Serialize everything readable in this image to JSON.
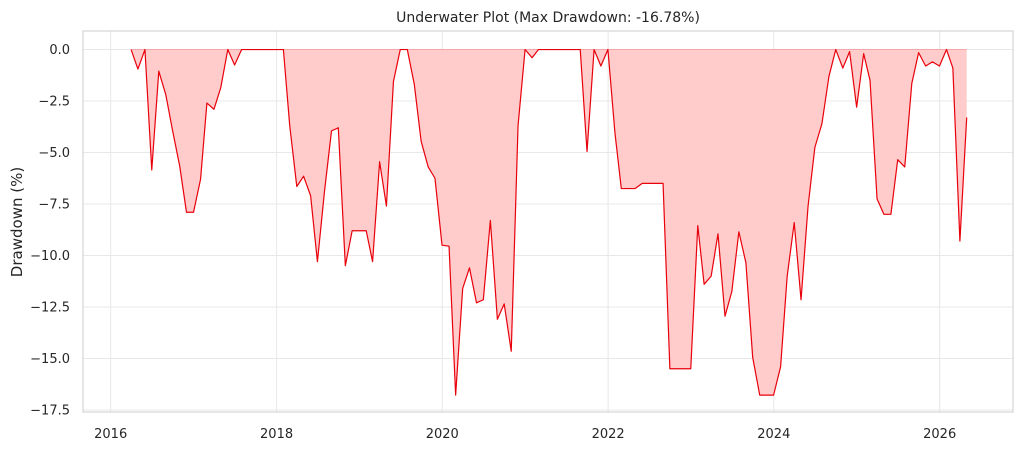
{
  "chart_data": {
    "type": "area",
    "title": "Underwater Plot (Max Drawdown: -16.78%)",
    "xlabel": "",
    "ylabel": "Drawdown (%)",
    "xlim": [
      "2015-09-01",
      "2026-11-20"
    ],
    "ylim": [
      -17.6,
      0.9
    ],
    "x_ticks": [
      "2016",
      "2018",
      "2020",
      "2022",
      "2024",
      "2026"
    ],
    "x_tick_dates": [
      "2016-01-01",
      "2018-01-01",
      "2020-01-01",
      "2022-01-01",
      "2024-01-01",
      "2026-01-01"
    ],
    "y_ticks": [
      0.0,
      -2.5,
      -5.0,
      -7.5,
      -10.0,
      -12.5,
      -15.0,
      -17.5
    ],
    "y_tick_labels": [
      "0.0",
      "−2.5",
      "−5.0",
      "−7.5",
      "−10.0",
      "−12.5",
      "−15.0",
      "−17.5"
    ],
    "grid": true,
    "colors": {
      "line": "#e8000b",
      "fill": "#ffcccb",
      "grid": "#e8e8e8",
      "spine": "#cccccc"
    },
    "series": [
      {
        "x": [
          "2016-03-31",
          "2016-04-30",
          "2016-05-31",
          "2016-06-30",
          "2016-07-31",
          "2016-08-31",
          "2016-09-30",
          "2016-10-31",
          "2016-11-30",
          "2016-12-31",
          "2017-01-31",
          "2017-02-28",
          "2017-03-31",
          "2017-04-30",
          "2017-05-31",
          "2017-06-30",
          "2017-07-31",
          "2017-08-31",
          "2017-09-30",
          "2017-10-31",
          "2017-11-30",
          "2017-12-31",
          "2018-01-31",
          "2018-02-28",
          "2018-03-31",
          "2018-04-30",
          "2018-05-31",
          "2018-06-30",
          "2018-07-31",
          "2018-08-31",
          "2018-09-30",
          "2018-10-31",
          "2018-11-30",
          "2018-12-31",
          "2019-01-31",
          "2019-02-28",
          "2019-03-31",
          "2019-04-30",
          "2019-05-31",
          "2019-06-30",
          "2019-07-31",
          "2019-08-31",
          "2019-09-30",
          "2019-10-31",
          "2019-11-30",
          "2019-12-31",
          "2020-01-31",
          "2020-02-29",
          "2020-03-31",
          "2020-04-30",
          "2020-05-31",
          "2020-06-30",
          "2020-07-31",
          "2020-08-31",
          "2020-09-30",
          "2020-10-31",
          "2020-11-30",
          "2020-12-31",
          "2021-01-31",
          "2021-02-28",
          "2021-03-31",
          "2021-04-30",
          "2021-05-31",
          "2021-06-30",
          "2021-07-31",
          "2021-08-31",
          "2021-09-30",
          "2021-10-31",
          "2021-11-30",
          "2021-12-31",
          "2022-01-31",
          "2022-02-28",
          "2022-03-31",
          "2022-04-30",
          "2022-05-31",
          "2022-06-30",
          "2022-07-31",
          "2022-08-31",
          "2022-09-30",
          "2022-10-31",
          "2022-11-30",
          "2022-12-31",
          "2023-01-31",
          "2023-02-28",
          "2023-03-31",
          "2023-04-30",
          "2023-05-31",
          "2023-06-30",
          "2023-07-31",
          "2023-08-31",
          "2023-09-30",
          "2023-10-31",
          "2023-11-30",
          "2023-12-31",
          "2024-01-31",
          "2024-02-29",
          "2024-03-31",
          "2024-04-30",
          "2024-05-31",
          "2024-06-30",
          "2024-07-31",
          "2024-08-31",
          "2024-09-30",
          "2024-10-31",
          "2024-11-30",
          "2024-12-31",
          "2025-01-31",
          "2025-02-28",
          "2025-03-31",
          "2025-04-30",
          "2025-05-31",
          "2025-06-30",
          "2025-07-31",
          "2025-08-31",
          "2025-09-30",
          "2025-10-31",
          "2025-11-30",
          "2025-12-31",
          "2026-01-31",
          "2026-02-28",
          "2026-03-31",
          "2026-04-30"
        ],
        "values": [
          0.0,
          -0.95,
          0.0,
          -5.85,
          -1.05,
          -2.2,
          -3.95,
          -5.65,
          -7.9,
          -7.9,
          -6.3,
          -2.6,
          -2.9,
          -1.85,
          0.0,
          -0.75,
          0.0,
          0.0,
          0.0,
          0.0,
          0.0,
          0.0,
          0.0,
          -3.7,
          -6.65,
          -6.15,
          -7.1,
          -10.3,
          -6.9,
          -3.95,
          -3.8,
          -10.5,
          -8.8,
          -8.8,
          -8.8,
          -10.3,
          -5.45,
          -7.6,
          -1.55,
          0.0,
          0.0,
          -1.7,
          -4.45,
          -5.7,
          -6.25,
          -9.5,
          -9.55,
          -16.78,
          -11.6,
          -10.6,
          -12.3,
          -12.15,
          -8.3,
          -13.1,
          -12.35,
          -14.65,
          -3.7,
          0.0,
          -0.4,
          0.0,
          0.0,
          0.0,
          0.0,
          0.0,
          0.0,
          0.0,
          -4.95,
          0.0,
          -0.8,
          0.0,
          -4.05,
          -6.75,
          -6.75,
          -6.75,
          -6.5,
          -6.5,
          -6.5,
          -6.5,
          -15.5,
          -15.5,
          -15.5,
          -15.5,
          -8.55,
          -11.4,
          -11.0,
          -8.95,
          -12.95,
          -11.75,
          -8.85,
          -10.35,
          -14.95,
          -16.78,
          -16.78,
          -16.78,
          -15.4,
          -11.0,
          -8.4,
          -12.15,
          -7.6,
          -4.75,
          -3.6,
          -1.3,
          0.0,
          -0.9,
          -0.1,
          -2.8,
          -0.2,
          -1.5,
          -7.25,
          -8.0,
          -8.0,
          -5.35,
          -5.7,
          -1.65,
          -0.15,
          -0.8,
          -0.6,
          -0.8,
          0.0,
          -0.9,
          -9.3,
          -3.3
        ]
      }
    ]
  }
}
